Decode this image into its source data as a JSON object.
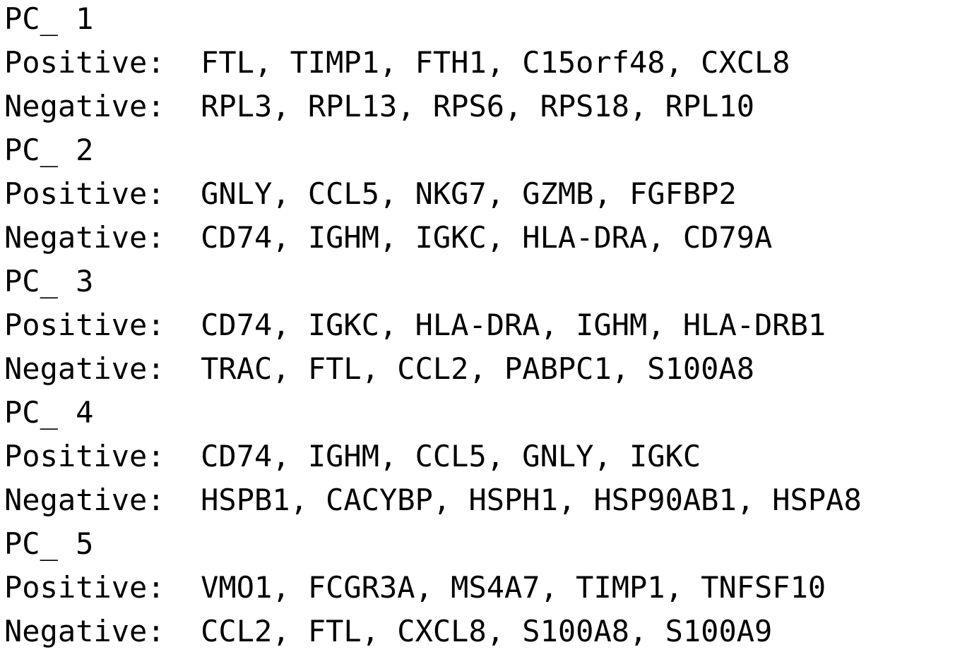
{
  "console": {
    "lines": [
      "PC_ 1",
      "Positive:  FTL, TIMP1, FTH1, C15orf48, CXCL8",
      "Negative:  RPL3, RPL13, RPS6, RPS18, RPL10",
      "PC_ 2",
      "Positive:  GNLY, CCL5, NKG7, GZMB, FGFBP2",
      "Negative:  CD74, IGHM, IGKC, HLA-DRA, CD79A",
      "PC_ 3",
      "Positive:  CD74, IGKC, HLA-DRA, IGHM, HLA-DRB1",
      "Negative:  TRAC, FTL, CCL2, PABPC1, S100A8",
      "PC_ 4",
      "Positive:  CD74, IGHM, CCL5, GNLY, IGKC",
      "Negative:  HSPB1, CACYBP, HSPH1, HSP90AB1, HSPA8",
      "PC_ 5",
      "Positive:  VMO1, FCGR3A, MS4A7, TIMP1, TNFSF10",
      "Negative:  CCL2, FTL, CXCL8, S100A8, S100A9"
    ]
  },
  "colors": {
    "background": "#ffffff",
    "text": "#000000"
  }
}
